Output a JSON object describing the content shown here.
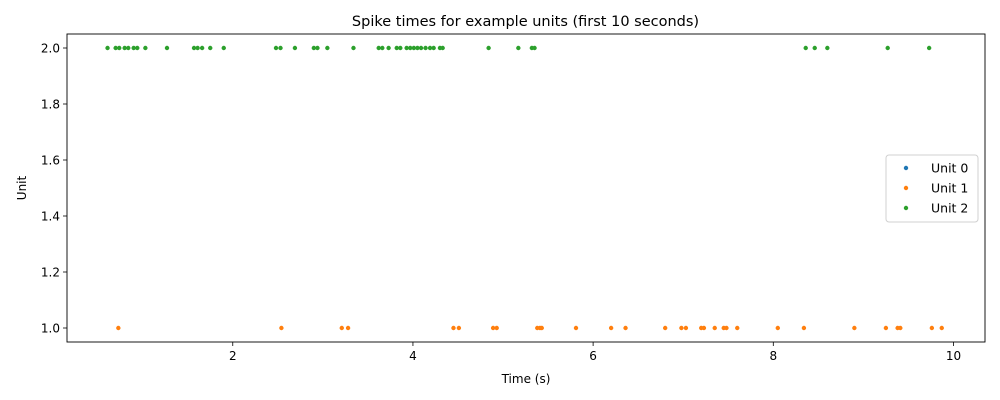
{
  "chart_data": {
    "type": "scatter",
    "title": "Spike times for example units (first 10 seconds)",
    "xlabel": "Time (s)",
    "ylabel": "Unit",
    "xlim": [
      0.16,
      10.35
    ],
    "ylim": [
      0.95,
      2.05
    ],
    "x_ticks": [
      2,
      4,
      6,
      8,
      10
    ],
    "y_ticks": [
      1.0,
      1.2,
      1.4,
      1.6,
      1.8,
      2.0
    ],
    "x_tick_labels": [
      "2",
      "4",
      "6",
      "8",
      "10"
    ],
    "y_tick_labels": [
      "1.0",
      "1.2",
      "1.4",
      "1.6",
      "1.8",
      "2.0"
    ],
    "grid": false,
    "legend_position": "center-right",
    "series": [
      {
        "name": "Unit 0",
        "color": "#1f77b4",
        "points": []
      },
      {
        "name": "Unit 1",
        "color": "#ff7f0e",
        "points": [
          [
            0.73,
            1.0
          ],
          [
            2.54,
            1.0
          ],
          [
            3.21,
            1.0
          ],
          [
            3.28,
            1.0
          ],
          [
            4.45,
            1.0
          ],
          [
            4.51,
            1.0
          ],
          [
            4.89,
            1.0
          ],
          [
            4.93,
            1.0
          ],
          [
            5.38,
            1.0
          ],
          [
            5.41,
            1.0
          ],
          [
            5.43,
            1.0
          ],
          [
            5.81,
            1.0
          ],
          [
            6.2,
            1.0
          ],
          [
            6.36,
            1.0
          ],
          [
            6.8,
            1.0
          ],
          [
            6.98,
            1.0
          ],
          [
            7.03,
            1.0
          ],
          [
            7.2,
            1.0
          ],
          [
            7.23,
            1.0
          ],
          [
            7.35,
            1.0
          ],
          [
            7.45,
            1.0
          ],
          [
            7.48,
            1.0
          ],
          [
            7.6,
            1.0
          ],
          [
            8.05,
            1.0
          ],
          [
            8.34,
            1.0
          ],
          [
            8.9,
            1.0
          ],
          [
            9.25,
            1.0
          ],
          [
            9.38,
            1.0
          ],
          [
            9.41,
            1.0
          ],
          [
            9.76,
            1.0
          ],
          [
            9.87,
            1.0
          ]
        ]
      },
      {
        "name": "Unit 2",
        "color": "#2ca02c",
        "points": [
          [
            0.61,
            2.0
          ],
          [
            0.7,
            2.0
          ],
          [
            0.74,
            2.0
          ],
          [
            0.8,
            2.0
          ],
          [
            0.84,
            2.0
          ],
          [
            0.9,
            2.0
          ],
          [
            0.94,
            2.0
          ],
          [
            1.03,
            2.0
          ],
          [
            1.27,
            2.0
          ],
          [
            1.57,
            2.0
          ],
          [
            1.61,
            2.0
          ],
          [
            1.66,
            2.0
          ],
          [
            1.75,
            2.0
          ],
          [
            1.9,
            2.0
          ],
          [
            2.48,
            2.0
          ],
          [
            2.53,
            2.0
          ],
          [
            2.69,
            2.0
          ],
          [
            2.9,
            2.0
          ],
          [
            2.94,
            2.0
          ],
          [
            3.05,
            2.0
          ],
          [
            3.34,
            2.0
          ],
          [
            3.62,
            2.0
          ],
          [
            3.66,
            2.0
          ],
          [
            3.73,
            2.0
          ],
          [
            3.82,
            2.0
          ],
          [
            3.86,
            2.0
          ],
          [
            3.93,
            2.0
          ],
          [
            3.97,
            2.0
          ],
          [
            4.01,
            2.0
          ],
          [
            4.05,
            2.0
          ],
          [
            4.09,
            2.0
          ],
          [
            4.14,
            2.0
          ],
          [
            4.19,
            2.0
          ],
          [
            4.23,
            2.0
          ],
          [
            4.3,
            2.0
          ],
          [
            4.33,
            2.0
          ],
          [
            4.84,
            2.0
          ],
          [
            5.17,
            2.0
          ],
          [
            5.32,
            2.0
          ],
          [
            5.35,
            2.0
          ],
          [
            8.36,
            2.0
          ],
          [
            8.46,
            2.0
          ],
          [
            8.6,
            2.0
          ],
          [
            9.27,
            2.0
          ],
          [
            9.73,
            2.0
          ]
        ]
      }
    ]
  }
}
